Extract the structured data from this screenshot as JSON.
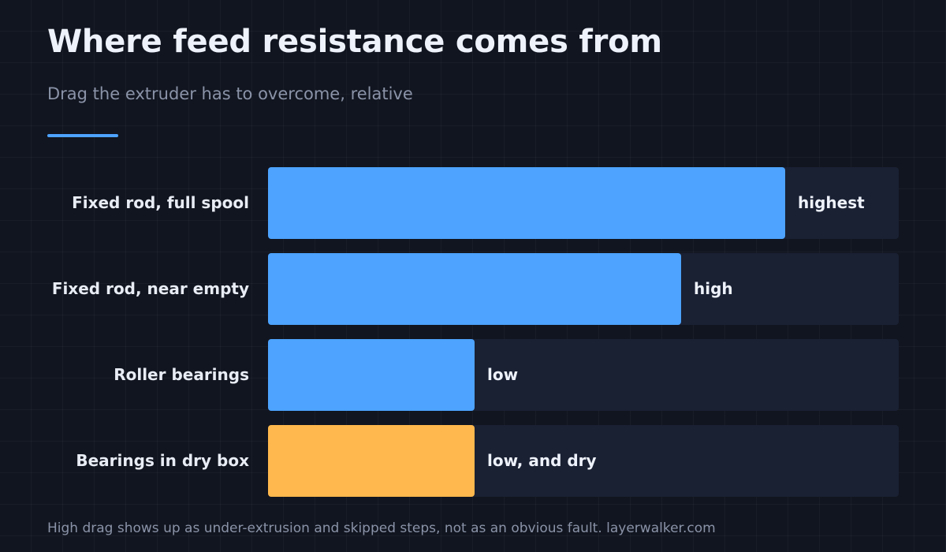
{
  "title": "Where feed resistance comes from",
  "subtitle": "Drag the extruder has to overcome, relative",
  "footnote": "High drag shows up as under-extrusion and skipped steps, not as an obvious fault. layerwalker.com",
  "colors": {
    "background": "#11151f",
    "track": "#1a2133",
    "primary": "#4da3ff",
    "highlight": "#ffb84d",
    "accent_rule": "#4da3ff"
  },
  "chart_data": {
    "type": "bar",
    "orientation": "horizontal",
    "title": "Where feed resistance comes from",
    "subtitle": "Drag the extruder has to overcome, relative",
    "categories": [
      "Fixed rod, full spool",
      "Fixed rod, near empty",
      "Roller bearings",
      "Bearings in dry box"
    ],
    "values": [
      0.82,
      0.655,
      0.328,
      0.328
    ],
    "value_labels": [
      "highest",
      "high",
      "low",
      "low, and dry"
    ],
    "highlighted": [
      false,
      false,
      false,
      true
    ],
    "xlim": [
      0,
      1
    ],
    "grid": false,
    "legend": "none"
  }
}
